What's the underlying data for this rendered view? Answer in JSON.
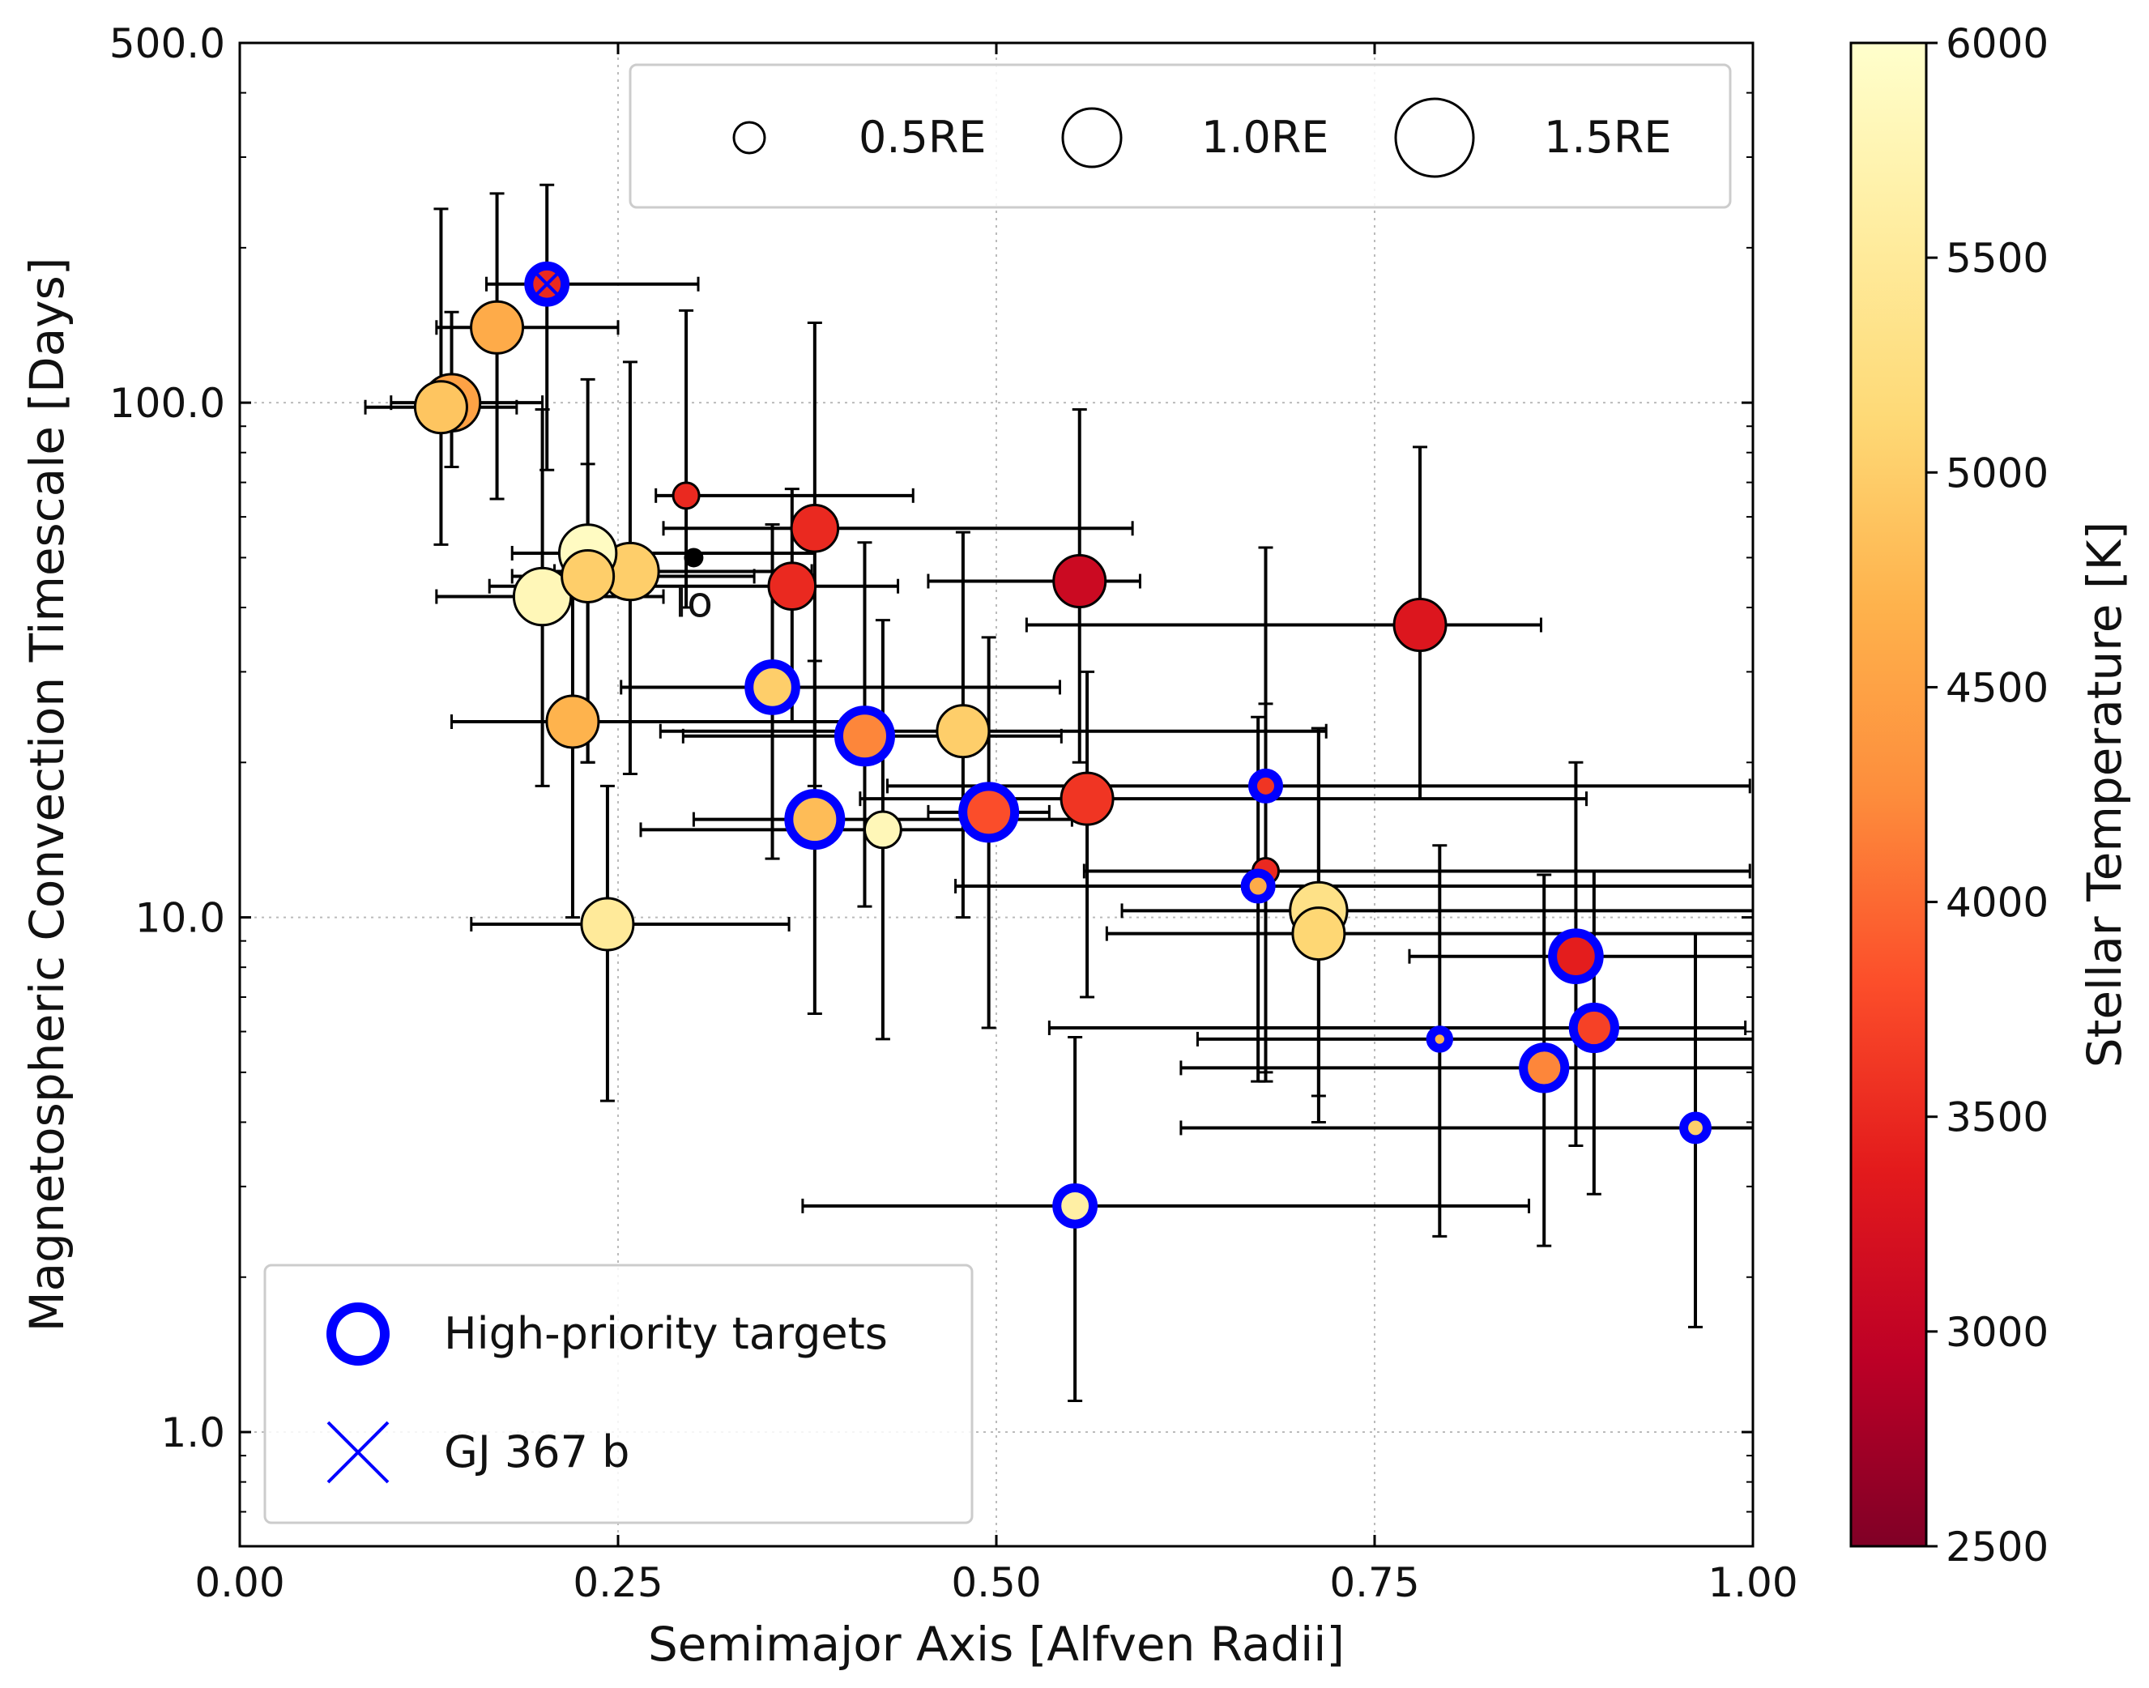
{
  "chart_data": {
    "type": "scatter",
    "title": "",
    "xlabel": "Semimajor Axis [Alfven Radii]",
    "ylabel": "Magnetospheric Convection Timescale [Days]",
    "xlim": [
      0.0,
      1.0
    ],
    "ylim": [
      0.6,
      500.0
    ],
    "yscale": "log",
    "xticks": [
      0.0,
      0.25,
      0.5,
      0.75,
      1.0
    ],
    "xtick_labels": [
      "0.00",
      "0.25",
      "0.50",
      "0.75",
      "1.00"
    ],
    "yticks": [
      1.0,
      10.0,
      100.0,
      500.0
    ],
    "ytick_labels": [
      "1.0",
      "10.0",
      "100.0",
      "500.0"
    ],
    "grid": true,
    "colorbar": {
      "label": "Stellar Temperature [K]",
      "min": 2500,
      "max": 6000,
      "ticks": [
        2500,
        3000,
        3500,
        4000,
        4500,
        5000,
        5500,
        6000
      ],
      "tick_labels": [
        "2500",
        "3000",
        "3500",
        "4000",
        "4500",
        "5000",
        "5500",
        "6000"
      ],
      "stops": [
        "#800026",
        "#bd0026",
        "#e31a1c",
        "#fc4e2a",
        "#fd8d3c",
        "#feb24c",
        "#fed976",
        "#ffeda0",
        "#ffffcc"
      ]
    },
    "size_legend": {
      "entries": [
        {
          "label": "0.5RE",
          "radius_re": 0.5
        },
        {
          "label": "1.0RE",
          "radius_re": 1.0
        },
        {
          "label": "1.5RE",
          "radius_re": 1.5
        }
      ]
    },
    "legend": [
      {
        "label": "High-priority targets",
        "marker": "blue-ring",
        "color": "#0000ff"
      },
      {
        "label": "GJ 367 b",
        "marker": "x",
        "color": "#0000ff"
      }
    ],
    "annotation": {
      "text": "Io",
      "x": 0.3,
      "y": 50
    },
    "points": [
      {
        "x": 0.203,
        "y": 170,
        "xerr": [
          0.04,
          0.1
        ],
        "yerr": [
          96,
          95
        ],
        "teff": 3500,
        "radius_re": 0.7,
        "priority": true,
        "gj367": true
      },
      {
        "x": 0.17,
        "y": 140,
        "xerr": [
          0.04,
          0.08
        ],
        "yerr": [
          75,
          115
        ],
        "teff": 4600,
        "radius_re": 1.0
      },
      {
        "x": 0.14,
        "y": 100,
        "xerr": [
          0.04,
          0.06
        ],
        "yerr": [
          25,
          50
        ],
        "teff": 4500,
        "radius_re": 1.1
      },
      {
        "x": 0.133,
        "y": 98,
        "xerr": [
          0.05,
          0.05
        ],
        "yerr": [
          45,
          140
        ],
        "teff": 4900,
        "radius_re": 1.0
      },
      {
        "x": 0.295,
        "y": 66,
        "xerr": [
          0.02,
          0.15
        ],
        "yerr": [
          26,
          85
        ],
        "teff": 3500,
        "radius_re": 0.5
      },
      {
        "x": 0.38,
        "y": 57,
        "xerr": [
          0.1,
          0.21
        ],
        "yerr": [
          39,
          86
        ],
        "teff": 3500,
        "radius_re": 0.9
      },
      {
        "x": 0.365,
        "y": 44,
        "xerr": [
          0.2,
          0.07
        ],
        "yerr": [
          20,
          24
        ],
        "teff": 3500,
        "radius_re": 0.9
      },
      {
        "x": 0.555,
        "y": 45,
        "xerr": [
          0.1,
          0.04
        ],
        "yerr": [
          25,
          52
        ],
        "teff": 3100,
        "radius_re": 1.0
      },
      {
        "x": 0.78,
        "y": 37,
        "xerr": [
          0.26,
          0.08
        ],
        "yerr": [
          20,
          45
        ],
        "teff": 3300,
        "radius_re": 1.0
      },
      {
        "x": 0.2,
        "y": 42,
        "xerr": [
          0.07,
          0.08
        ],
        "yerr": [
          24,
          55
        ],
        "teff": 5800,
        "radius_re": 1.1
      },
      {
        "x": 0.23,
        "y": 46,
        "xerr": [
          0.05,
          0.11
        ],
        "yerr": [
          26,
          30
        ],
        "teff": 5000,
        "radius_re": 1.0
      },
      {
        "x": 0.258,
        "y": 47,
        "xerr": [
          0.05,
          0.12
        ],
        "yerr": [
          28,
          73
        ],
        "teff": 5000,
        "radius_re": 1.1
      },
      {
        "x": 0.23,
        "y": 51,
        "xerr": [
          0.05,
          0.15
        ],
        "yerr": [
          31,
          60
        ],
        "teff": 5900,
        "radius_re": 1.1
      },
      {
        "x": 0.352,
        "y": 28,
        "xerr": [
          0.1,
          0.19
        ],
        "yerr": [
          15,
          30
        ],
        "teff": 5000,
        "radius_re": 0.9,
        "priority": true
      },
      {
        "x": 0.413,
        "y": 22.5,
        "xerr": [
          0.12,
          0.13
        ],
        "yerr": [
          12,
          31
        ],
        "teff": 4200,
        "radius_re": 1.0,
        "priority": true
      },
      {
        "x": 0.478,
        "y": 23,
        "xerr": [
          0.2,
          0.24
        ],
        "yerr": [
          13,
          33
        ],
        "teff": 5000,
        "radius_re": 1.0
      },
      {
        "x": 0.22,
        "y": 24,
        "xerr": [
          0.08,
          0.2
        ],
        "yerr": [
          14,
          25
        ],
        "teff": 4700,
        "radius_re": 1.0
      },
      {
        "x": 0.38,
        "y": 15.5,
        "xerr": [
          0.08,
          0.17
        ],
        "yerr": [
          9,
          16
        ],
        "teff": 4800,
        "radius_re": 1.0,
        "priority": true
      },
      {
        "x": 0.425,
        "y": 14.8,
        "xerr": [
          0.16,
          0.08
        ],
        "yerr": [
          9,
          23
        ],
        "teff": 5800,
        "radius_re": 0.7
      },
      {
        "x": 0.495,
        "y": 16,
        "xerr": [
          0.04,
          0.04
        ],
        "yerr": [
          9.9,
          19
        ],
        "teff": 3800,
        "radius_re": 1.0,
        "priority": true
      },
      {
        "x": 0.56,
        "y": 17,
        "xerr": [
          0.15,
          0.33
        ],
        "yerr": [
          10,
          13
        ],
        "teff": 3600,
        "radius_re": 1.0
      },
      {
        "x": 0.243,
        "y": 9.7,
        "xerr": [
          0.09,
          0.12
        ],
        "yerr": [
          5.3,
          8.3
        ],
        "teff": 5500,
        "radius_re": 1.0
      },
      {
        "x": 0.678,
        "y": 18,
        "xerr": [
          0.25,
          0.32
        ],
        "yerr": [
          13,
          8
        ],
        "teff": 3600,
        "radius_re": 0.5,
        "priority": true
      },
      {
        "x": 0.678,
        "y": 12.3,
        "xerr": [
          0.12,
          0.32
        ],
        "yerr": [
          7.5,
          40
        ],
        "teff": 3500,
        "radius_re": 0.5
      },
      {
        "x": 0.673,
        "y": 11.5,
        "xerr": [
          0.2,
          0.33
        ],
        "yerr": [
          6.7,
          13
        ],
        "teff": 4600,
        "radius_re": 0.5,
        "priority": true
      },
      {
        "x": 0.713,
        "y": 10.3,
        "xerr": [
          0.13,
          0.29
        ],
        "yerr": [
          5.8,
          13
        ],
        "teff": 5300,
        "radius_re": 1.1
      },
      {
        "x": 0.713,
        "y": 9.3,
        "xerr": [
          0.14,
          0.29
        ],
        "yerr": [
          5.3,
          14
        ],
        "teff": 5100,
        "radius_re": 1.0
      },
      {
        "x": 0.883,
        "y": 8.4,
        "xerr": [
          0.11,
          0.12
        ],
        "yerr": [
          4.8,
          11.6
        ],
        "teff": 3400,
        "radius_re": 0.9,
        "priority": true
      },
      {
        "x": 0.895,
        "y": 6.1,
        "xerr": [
          0.36,
          0.1
        ],
        "yerr": [
          3.2,
          6.2
        ],
        "teff": 3700,
        "radius_re": 0.8,
        "priority": true
      },
      {
        "x": 0.862,
        "y": 5.1,
        "xerr": [
          0.24,
          0.14
        ],
        "yerr": [
          2.8,
          7
        ],
        "teff": 4200,
        "radius_re": 0.8,
        "priority": true
      },
      {
        "x": 0.793,
        "y": 5.8,
        "xerr": [
          0.16,
          0.21
        ],
        "yerr": [
          3.4,
          8
        ],
        "teff": 4700,
        "radius_re": 0.35,
        "priority": true
      },
      {
        "x": 0.962,
        "y": 3.9,
        "xerr": [
          0.34,
          0.04
        ],
        "yerr": [
          2.3,
          5.4
        ],
        "teff": 5000,
        "radius_re": 0.45,
        "priority": true
      },
      {
        "x": 0.552,
        "y": 2.75,
        "xerr": [
          0.18,
          0.3
        ],
        "yerr": [
          1.6,
          3.1
        ],
        "teff": 5600,
        "radius_re": 0.7,
        "priority": true
      }
    ]
  }
}
